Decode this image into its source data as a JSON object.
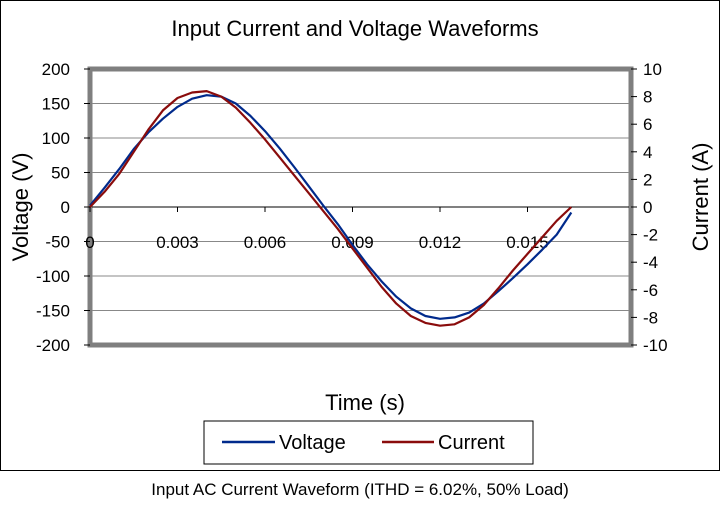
{
  "caption": "Input AC Current Waveform (ITHD = 6.02%, 50% Load)",
  "colors": {
    "voltage": "#002a8c",
    "current": "#8a0c0c",
    "frame": "#7f7f7f",
    "grid": "#888888"
  },
  "chart_data": {
    "type": "line",
    "title": "Input Current and Voltage Waveforms",
    "xlabel": "Time (s)",
    "ylabel": "Voltage (V)",
    "y2label": "Current (A)",
    "xlim": [
      0,
      0.018
    ],
    "ylim": [
      -200,
      200
    ],
    "y2lim": [
      -10,
      10
    ],
    "xticks": [
      0,
      0.003,
      0.006,
      0.009,
      0.012,
      0.015
    ],
    "xtick_labels": [
      "0",
      "0.003",
      "0.006",
      "0.009",
      "0.012",
      "0.015"
    ],
    "yticks": [
      200,
      150,
      100,
      50,
      0,
      -50,
      -100,
      -150,
      -200
    ],
    "ytick_labels": [
      "200",
      "150",
      "100",
      "50",
      "0",
      "-50",
      "-100",
      "-150",
      "-200"
    ],
    "y2ticks": [
      10,
      8,
      6,
      4,
      2,
      0,
      -2,
      -4,
      -6,
      -8,
      -10
    ],
    "y2tick_labels": [
      "10",
      "8",
      "6",
      "4",
      "2",
      "0",
      "-2",
      "-4",
      "-6",
      "-8",
      "-10"
    ],
    "grid": "horizontal",
    "legend_position": "bottom",
    "series": [
      {
        "name": "Voltage",
        "axis": "left",
        "x": [
          0,
          0.0005,
          0.001,
          0.0015,
          0.002,
          0.0025,
          0.003,
          0.0035,
          0.004,
          0.0045,
          0.005,
          0.0055,
          0.006,
          0.0065,
          0.007,
          0.0075,
          0.008,
          0.0085,
          0.009,
          0.0095,
          0.01,
          0.0105,
          0.011,
          0.0115,
          0.012,
          0.0125,
          0.013,
          0.0135,
          0.014,
          0.0145,
          0.015,
          0.0155,
          0.016,
          0.0165
        ],
        "y": [
          2,
          28,
          55,
          84,
          108,
          128,
          145,
          157,
          162,
          160,
          150,
          132,
          110,
          85,
          58,
          30,
          2,
          -25,
          -55,
          -83,
          -108,
          -130,
          -147,
          -158,
          -162,
          -160,
          -153,
          -140,
          -122,
          -103,
          -83,
          -62,
          -40,
          -8
        ]
      },
      {
        "name": "Current",
        "axis": "right",
        "x": [
          0,
          0.0005,
          0.001,
          0.0015,
          0.002,
          0.0025,
          0.003,
          0.0035,
          0.004,
          0.0045,
          0.005,
          0.0055,
          0.006,
          0.0065,
          0.007,
          0.0075,
          0.008,
          0.0085,
          0.009,
          0.0095,
          0.01,
          0.0105,
          0.011,
          0.0115,
          0.012,
          0.0125,
          0.013,
          0.0135,
          0.014,
          0.0145,
          0.015,
          0.0155,
          0.016,
          0.0165
        ],
        "y": [
          0,
          1.1,
          2.4,
          4.0,
          5.6,
          7.0,
          7.9,
          8.3,
          8.4,
          8.0,
          7.2,
          6.1,
          4.9,
          3.6,
          2.3,
          1.0,
          -0.3,
          -1.6,
          -3.0,
          -4.4,
          -5.8,
          -7.0,
          -7.9,
          -8.4,
          -8.6,
          -8.5,
          -8.0,
          -7.1,
          -5.9,
          -4.6,
          -3.4,
          -2.2,
          -1.0,
          0
        ]
      }
    ]
  }
}
